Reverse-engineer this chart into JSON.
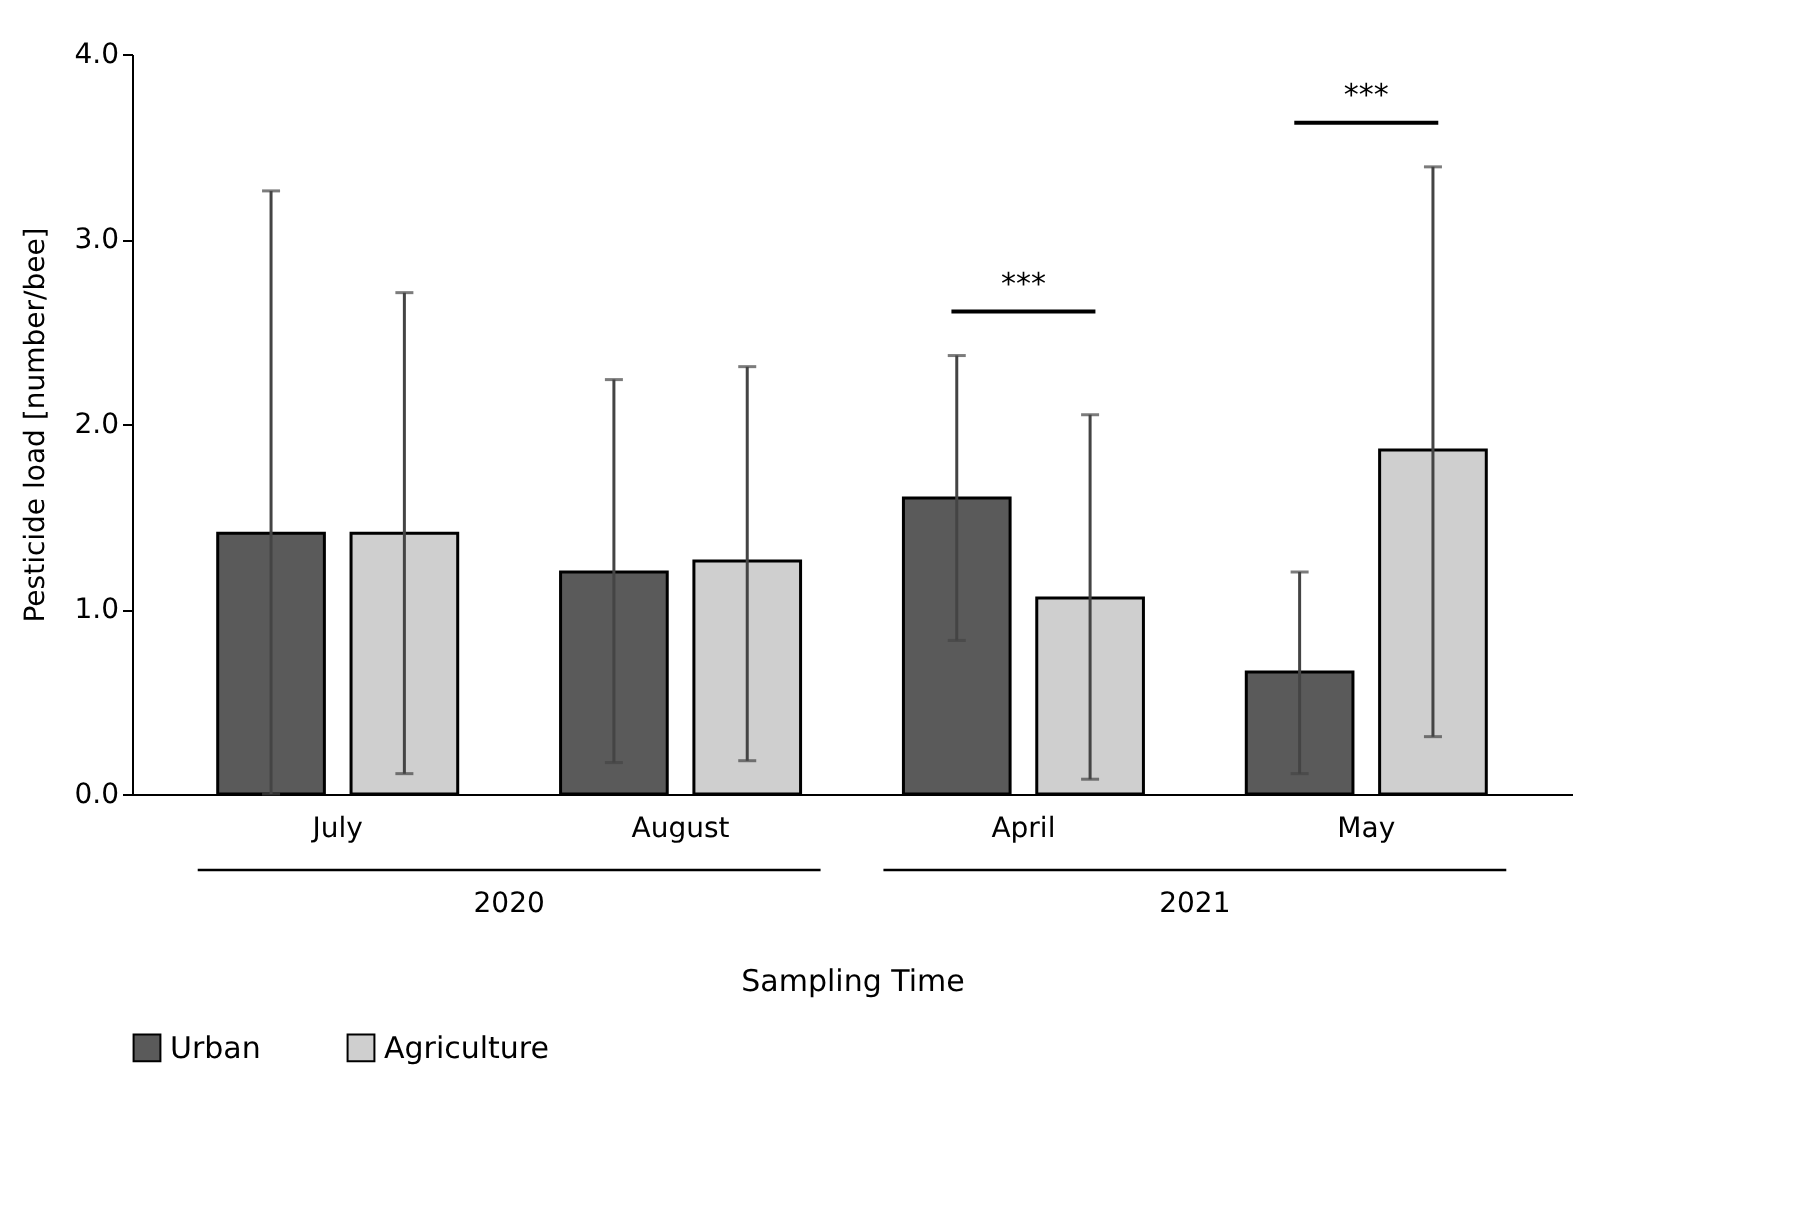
{
  "chart_data": {
    "type": "bar",
    "xlabel": "Sampling Time",
    "ylabel": "Pesticide load [number/bee]",
    "categories": [
      "July",
      "August",
      "April",
      "May"
    ],
    "series": [
      {
        "name": "Urban",
        "color": "#5a5a5a",
        "values": [
          1.41,
          1.2,
          1.6,
          0.66
        ],
        "errors": [
          [
            0.0,
            3.26
          ],
          [
            0.17,
            2.24
          ],
          [
            0.83,
            2.37
          ],
          [
            0.11,
            1.2
          ]
        ]
      },
      {
        "name": "Agriculture",
        "color": "#cfcfcf",
        "values": [
          1.41,
          1.26,
          1.06,
          1.86
        ],
        "errors": [
          [
            0.11,
            2.71
          ],
          [
            0.18,
            2.31
          ],
          [
            0.08,
            2.05
          ],
          [
            0.31,
            3.39
          ]
        ]
      }
    ],
    "ylim": [
      0,
      4
    ],
    "yticks": [
      {
        "value": 0,
        "label": "0.0"
      },
      {
        "value": 1,
        "label": "1.0"
      },
      {
        "value": 2,
        "label": "2.0"
      },
      {
        "value": 3,
        "label": "3.0"
      },
      {
        "value": 4,
        "label": "4.0"
      }
    ],
    "grid": false,
    "legend": "bottom",
    "annotations": [
      "2020",
      "2021",
      "***",
      "***"
    ]
  }
}
